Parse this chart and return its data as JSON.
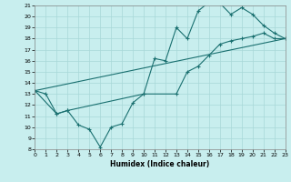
{
  "xlabel": "Humidex (Indice chaleur)",
  "xlim": [
    0,
    23
  ],
  "ylim": [
    8,
    21
  ],
  "xticks": [
    0,
    1,
    2,
    3,
    4,
    5,
    6,
    7,
    8,
    9,
    10,
    11,
    12,
    13,
    14,
    15,
    16,
    17,
    18,
    19,
    20,
    21,
    22,
    23
  ],
  "yticks": [
    8,
    9,
    10,
    11,
    12,
    13,
    14,
    15,
    16,
    17,
    18,
    19,
    20,
    21
  ],
  "color": "#1a7070",
  "bg_color": "#c8eeee",
  "grid_color": "#a8d8d8",
  "line1_x": [
    0,
    1,
    2,
    3,
    4,
    5,
    6,
    7,
    8,
    9,
    10,
    11,
    12,
    13,
    14,
    15,
    16,
    17,
    18,
    19,
    20,
    21,
    22,
    23
  ],
  "line1_y": [
    13.3,
    13.0,
    11.2,
    11.5,
    10.2,
    9.8,
    8.2,
    10.0,
    10.3,
    12.2,
    13.0,
    16.2,
    16.0,
    19.0,
    18.0,
    20.5,
    21.3,
    21.2,
    20.2,
    20.8,
    20.2,
    19.2,
    18.5,
    18.0
  ],
  "line2_x": [
    0,
    2,
    3,
    10,
    13,
    14,
    15,
    16,
    17,
    18,
    19,
    20,
    21,
    22,
    23
  ],
  "line2_y": [
    13.3,
    11.2,
    11.5,
    13.0,
    13.0,
    15.0,
    15.5,
    16.5,
    17.5,
    17.8,
    18.0,
    18.2,
    18.5,
    18.0,
    18.0
  ],
  "line3_x": [
    0,
    23
  ],
  "line3_y": [
    13.3,
    18.0
  ]
}
